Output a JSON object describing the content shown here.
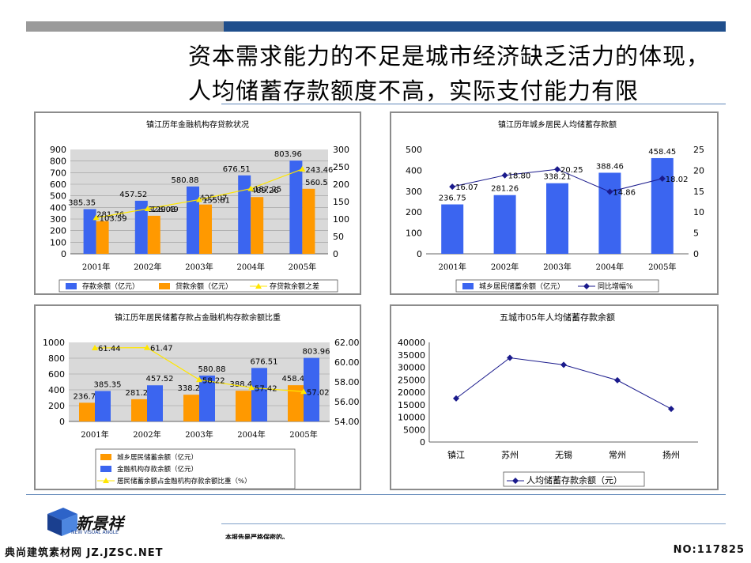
{
  "header": {
    "title_line1": "资本需求能力的不足是城市经济缺乏活力的体现，",
    "title_line2": "人均储蓄存款额度不高，实际支付能力有限"
  },
  "brand": {
    "logo_text": "新景祥",
    "logo_sub": "NEW VISUAL ANGLE"
  },
  "footer": {
    "confidential": "本报告是严格保密的。",
    "left": "典尚建筑素材网 JZ.JZSC.NET",
    "right": "NO:117825"
  },
  "colors": {
    "blue": "#3b65f0",
    "orange": "#ff9900",
    "yellow": "#ffe600",
    "navy": "#1a1a8c",
    "plot_bg": "#d9d9d9"
  },
  "chart_data": [
    {
      "type": "bar",
      "title": "镇江历年金融机构存贷款状况",
      "categories": [
        "2001年",
        "2002年",
        "2003年",
        "2004年",
        "2005年"
      ],
      "series": [
        {
          "name": "存款余额（亿元）",
          "kind": "bar",
          "axis": "left",
          "values": [
            385.35,
            457.52,
            580.88,
            676.51,
            803.96
          ],
          "labels": [
            "385.35",
            "457.52",
            "580.88",
            "676.51",
            "803.96"
          ]
        },
        {
          "name": "贷款余额（亿元）",
          "kind": "bar",
          "axis": "left",
          "values": [
            281.76,
            328.03,
            425.07,
            489.26,
            560.5
          ],
          "labels": [
            "281.76",
            "328.03",
            "425.07",
            "489.26",
            "560.5"
          ]
        },
        {
          "name": "存贷款余额之差",
          "kind": "line",
          "axis": "right",
          "values": [
            103.59,
            129.49,
            155.81,
            187.25,
            243.46
          ],
          "labels": [
            "103.59",
            "129.49",
            "155.81",
            "187.25",
            "243.46"
          ]
        }
      ],
      "ylim": [
        0,
        900
      ],
      "yticks": [
        "0",
        "100",
        "200",
        "300",
        "400",
        "500",
        "600",
        "700",
        "800",
        "900"
      ],
      "y2lim": [
        0,
        300
      ],
      "y2ticks": [
        "0",
        "50",
        "100",
        "150",
        "200",
        "250",
        "300"
      ],
      "grid": true,
      "legend": "bottom"
    },
    {
      "type": "bar",
      "title": "镇江历年城乡居民人均储蓄存款额",
      "categories": [
        "2001年",
        "2002年",
        "2003年",
        "2004年",
        "2005年"
      ],
      "series": [
        {
          "name": "城乡居民储蓄余额（亿元）",
          "kind": "bar",
          "axis": "left",
          "values": [
            236.75,
            281.26,
            338.21,
            388.46,
            458.45
          ],
          "labels": [
            "236.75",
            "281.26",
            "338.21",
            "388.46",
            "458.45"
          ]
        },
        {
          "name": "同比增幅%",
          "kind": "line",
          "axis": "right",
          "values": [
            16.07,
            18.8,
            20.25,
            14.86,
            18.02
          ],
          "labels": [
            "16.07",
            "18.80",
            "20.25",
            "14.86",
            "18.02"
          ]
        }
      ],
      "ylim": [
        0,
        500
      ],
      "yticks": [
        "0",
        "100",
        "200",
        "300",
        "400",
        "500"
      ],
      "y2lim": [
        0,
        25
      ],
      "y2ticks": [
        "0",
        "5",
        "10",
        "15",
        "20",
        "25"
      ],
      "grid": false,
      "legend": "bottom"
    },
    {
      "type": "bar",
      "title": "镇江历年居民储蓄存款占金融机构存款余额比重",
      "categories": [
        "2001年",
        "2002年",
        "2003年",
        "2004年",
        "2005年"
      ],
      "series": [
        {
          "name": "城乡居民储蓄余额（亿元）",
          "kind": "bar",
          "axis": "left",
          "values": [
            236.75,
            281.26,
            338.21,
            388.46,
            458.45
          ],
          "labels": [
            "236.75",
            "281.26",
            "338.21",
            "388.46",
            "458.45"
          ]
        },
        {
          "name": "金融机构存款余额（亿元）",
          "kind": "bar",
          "axis": "left",
          "values": [
            385.35,
            457.52,
            580.88,
            676.51,
            803.96
          ],
          "labels": [
            "385.35",
            "457.52",
            "580.88",
            "676.51",
            "803.96"
          ]
        },
        {
          "name": "居民储蓄余额占金融机构存款余额比重（%）",
          "kind": "line",
          "axis": "right",
          "values": [
            61.44,
            61.47,
            58.22,
            57.42,
            57.02
          ],
          "labels": [
            "61.44",
            "61.47",
            "58.22",
            "57.42",
            "57.02"
          ]
        }
      ],
      "ylim": [
        0,
        1000
      ],
      "yticks": [
        "0",
        "200",
        "400",
        "600",
        "800",
        "1000"
      ],
      "y2lim": [
        54,
        62
      ],
      "y2ticks": [
        "54.00",
        "56.00",
        "58.00",
        "60.00",
        "62.00"
      ],
      "grid": true,
      "legend": "bottom"
    },
    {
      "type": "line",
      "title": "五城市05年人均储蓄存款余额",
      "categories": [
        "镇江",
        "苏州",
        "无锡",
        "常州",
        "扬州"
      ],
      "series": [
        {
          "name": "人均储蓄存款余额（元）",
          "kind": "line",
          "axis": "left",
          "values": [
            17500,
            33800,
            31000,
            24800,
            13300
          ]
        }
      ],
      "ylim": [
        0,
        40000
      ],
      "yticks": [
        "0",
        "5000",
        "10000",
        "15000",
        "20000",
        "25000",
        "30000",
        "35000",
        "40000"
      ],
      "grid": false,
      "legend": "bottom"
    }
  ]
}
